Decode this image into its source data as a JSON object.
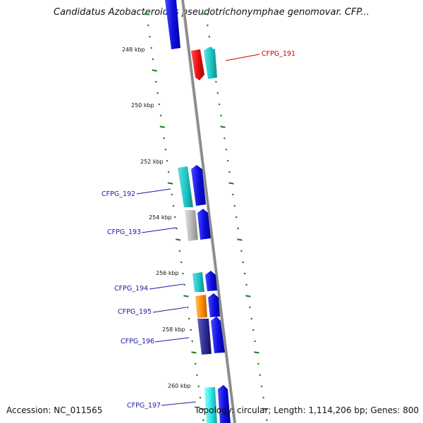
{
  "title": "Candidatus Azobacteroides pseudotrichonymphae genomovar. CFP...",
  "footer": {
    "accession": "Accession: NC_011565",
    "summary": "Topology: circular; Length: 1,114,206 bp; Genes: 800"
  },
  "colors": {
    "backbone": "#8a8a8a",
    "tick": "#1e7a1e",
    "label_blue": "#1a1aa6",
    "label_red": "#cc0000"
  },
  "kbp_labels": [
    "248 kbp",
    "250 kbp",
    "252 kbp",
    "254 kbp",
    "256 kbp",
    "258 kbp",
    "260 kbp"
  ],
  "gene_labels": [
    {
      "text": "CFPG_191",
      "color": "#cc0000"
    },
    {
      "text": "CFPG_192",
      "color": "#1a1aa6"
    },
    {
      "text": "CFPG_193",
      "color": "#1a1aa6"
    },
    {
      "text": "CFPG_194",
      "color": "#1a1aa6"
    },
    {
      "text": "CFPG_195",
      "color": "#1a1aa6"
    },
    {
      "text": "CFPG_196",
      "color": "#1a1aa6"
    },
    {
      "text": "CFPG_197",
      "color": "#1a1aa6"
    }
  ],
  "feature_colors": {
    "blue": "#1010e0",
    "cyan": "#20c8c8",
    "red": "#ee1010",
    "gray": "#b8b8b8",
    "orange": "#ff9000",
    "navy": "#303098",
    "lightcyan": "#30e8e8"
  }
}
